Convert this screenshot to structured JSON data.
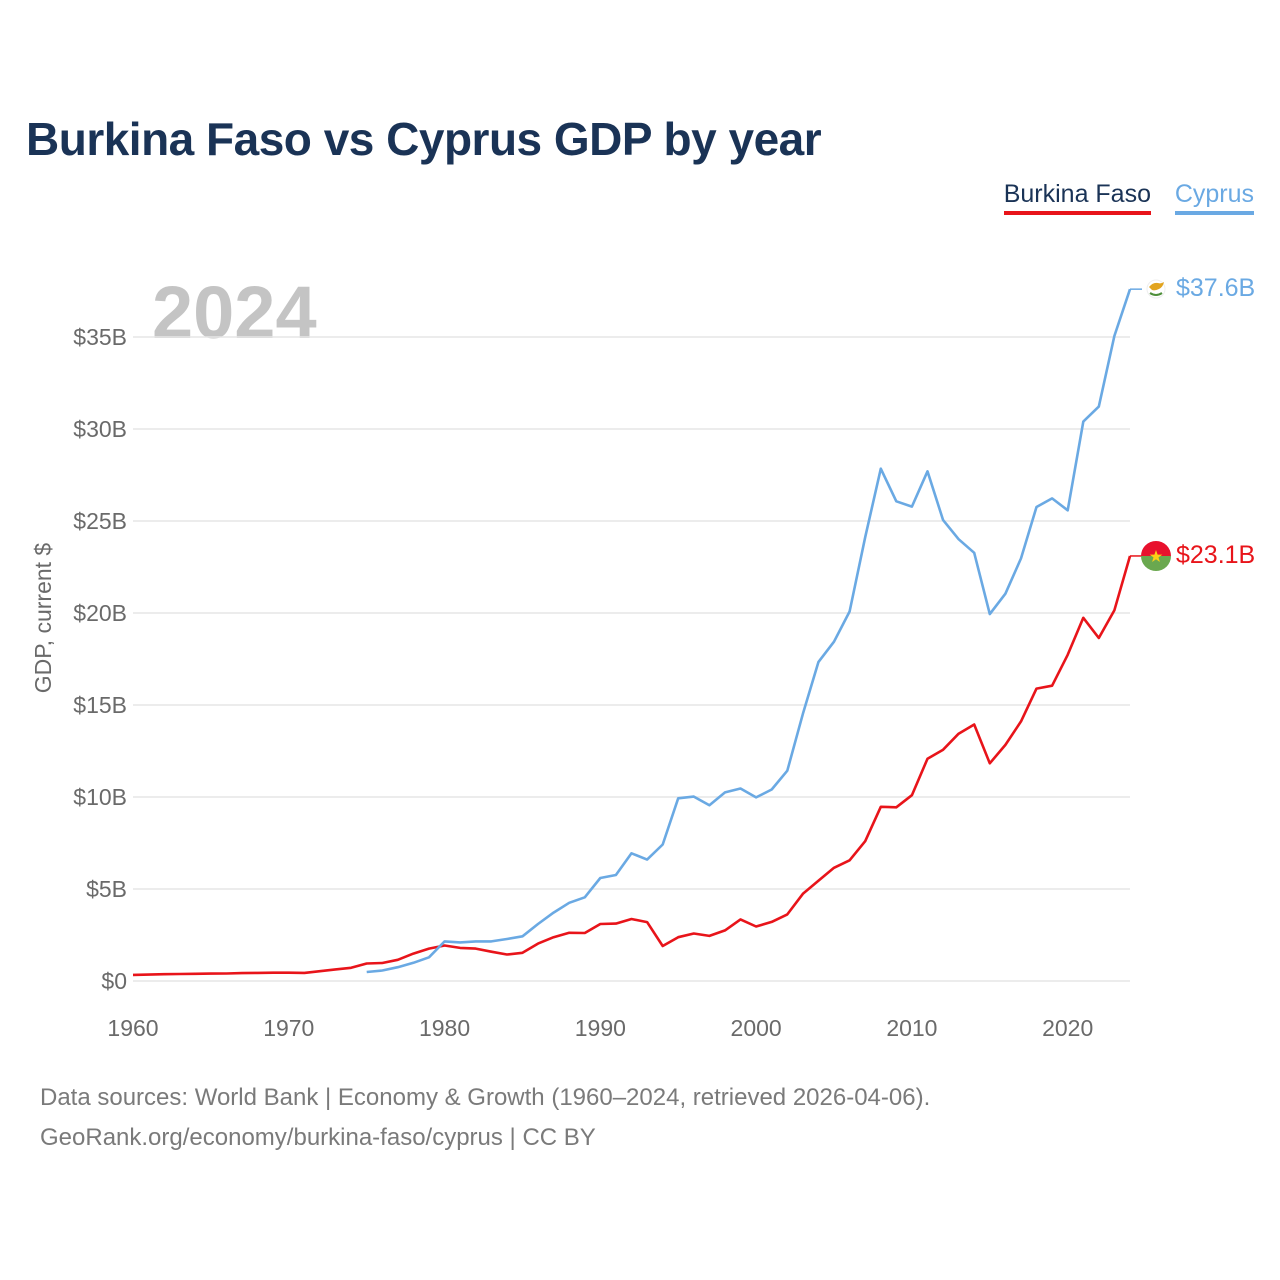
{
  "title": "Burkina Faso vs Cyprus GDP by year",
  "legend": [
    {
      "name": "Burkina Faso",
      "color": "#e8141a"
    },
    {
      "name": "Cyprus",
      "color": "#6aa9e3"
    }
  ],
  "year_watermark": "2024",
  "source_line1": "Data sources: World Bank | Economy & Growth (1960–2024, retrieved 2026-04-06).",
  "source_line2": "GeoRank.org/economy/burkina-faso/cyprus | CC BY",
  "chart_data": {
    "type": "line",
    "title": "Burkina Faso vs Cyprus GDP by year",
    "xlabel": "",
    "ylabel": "GDP, current $",
    "xlim": [
      1960,
      2024
    ],
    "ylim": [
      0,
      37.6
    ],
    "grid": true,
    "x_ticks": [
      1960,
      1970,
      1980,
      1990,
      2000,
      2010,
      2020
    ],
    "x_tick_labels": [
      "1960",
      "1970",
      "1980",
      "1990",
      "2000",
      "2010",
      "2020"
    ],
    "y_ticks": [
      0,
      5,
      10,
      15,
      20,
      25,
      30,
      35
    ],
    "y_tick_labels": [
      "$0",
      "$5B",
      "$10B",
      "$15B",
      "$20B",
      "$25B",
      "$30B",
      "$35B"
    ],
    "series": [
      {
        "name": "Burkina Faso",
        "color": "#e8141a",
        "end_label": "$23.1B",
        "x": [
          1960,
          1961,
          1962,
          1963,
          1964,
          1965,
          1966,
          1967,
          1968,
          1969,
          1970,
          1971,
          1972,
          1973,
          1974,
          1975,
          1976,
          1977,
          1978,
          1979,
          1980,
          1981,
          1982,
          1983,
          1984,
          1985,
          1986,
          1987,
          1988,
          1989,
          1990,
          1991,
          1992,
          1993,
          1994,
          1995,
          1996,
          1997,
          1998,
          1999,
          2000,
          2001,
          2002,
          2003,
          2004,
          2005,
          2006,
          2007,
          2008,
          2009,
          2010,
          2011,
          2012,
          2013,
          2014,
          2015,
          2016,
          2017,
          2018,
          2019,
          2020,
          2021,
          2022,
          2023,
          2024
        ],
        "values": [
          0.33,
          0.35,
          0.37,
          0.38,
          0.39,
          0.4,
          0.41,
          0.43,
          0.44,
          0.45,
          0.45,
          0.44,
          0.53,
          0.63,
          0.72,
          0.95,
          0.98,
          1.15,
          1.49,
          1.76,
          1.93,
          1.8,
          1.76,
          1.59,
          1.44,
          1.53,
          2.03,
          2.38,
          2.62,
          2.61,
          3.1,
          3.12,
          3.37,
          3.2,
          1.9,
          2.38,
          2.58,
          2.45,
          2.75,
          3.35,
          2.96,
          3.21,
          3.62,
          4.74,
          5.45,
          6.15,
          6.56,
          7.6,
          9.47,
          9.44,
          10.1,
          12.08,
          12.57,
          13.44,
          13.94,
          11.83,
          12.83,
          14.11,
          15.89,
          16.05,
          17.73,
          19.74,
          18.64,
          20.15,
          23.1
        ]
      },
      {
        "name": "Cyprus",
        "color": "#6aa9e3",
        "end_label": "$37.6B",
        "x": [
          1975,
          1976,
          1977,
          1978,
          1979,
          1980,
          1981,
          1982,
          1983,
          1984,
          1985,
          1986,
          1987,
          1988,
          1989,
          1990,
          1991,
          1992,
          1993,
          1994,
          1995,
          1996,
          1997,
          1998,
          1999,
          2000,
          2001,
          2002,
          2003,
          2004,
          2005,
          2006,
          2007,
          2008,
          2009,
          2010,
          2011,
          2012,
          2013,
          2014,
          2015,
          2016,
          2017,
          2018,
          2019,
          2020,
          2021,
          2022,
          2023,
          2024
        ],
        "values": [
          0.49,
          0.57,
          0.75,
          0.99,
          1.29,
          2.15,
          2.1,
          2.15,
          2.15,
          2.28,
          2.43,
          3.1,
          3.72,
          4.25,
          4.55,
          5.6,
          5.76,
          6.94,
          6.6,
          7.42,
          9.93,
          10.02,
          9.55,
          10.25,
          10.46,
          9.98,
          10.41,
          11.43,
          14.52,
          17.33,
          18.44,
          20.08,
          24.12,
          27.84,
          26.07,
          25.78,
          27.7,
          25.05,
          24.01,
          23.27,
          19.94,
          21.05,
          22.97,
          25.76,
          26.23,
          25.58,
          30.4,
          31.22,
          35.06,
          37.6
        ]
      }
    ]
  }
}
